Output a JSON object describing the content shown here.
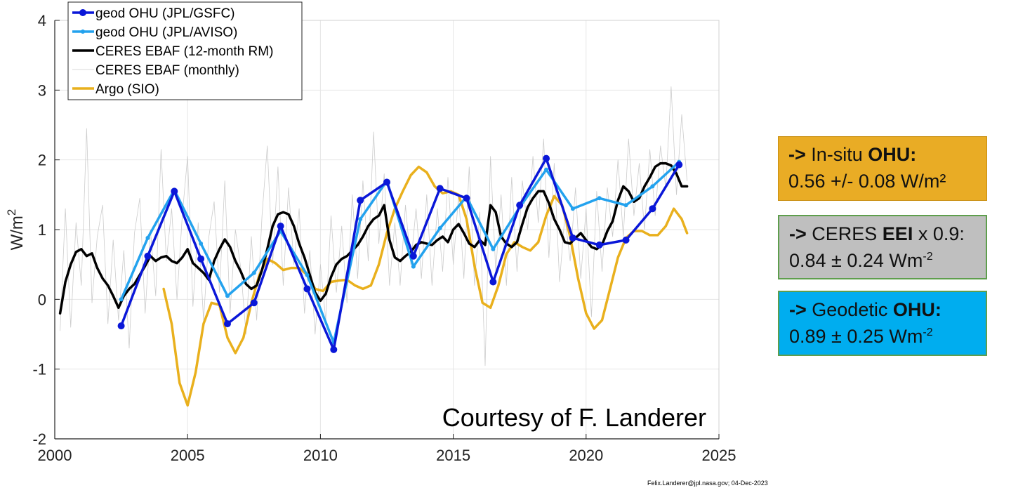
{
  "chart_data": {
    "type": "line",
    "title": "",
    "xlabel": "",
    "ylabel_base": "W/m",
    "ylabel_sup": "2",
    "xlim": [
      2000,
      2025
    ],
    "ylim": [
      -2,
      4
    ],
    "xticks": [
      2000,
      2005,
      2010,
      2015,
      2020,
      2025
    ],
    "yticks": [
      -2,
      -1,
      0,
      1,
      2,
      3,
      4
    ],
    "xtick_labels": [
      "2000",
      "2005",
      "2010",
      "2015",
      "2020",
      "2025"
    ],
    "ytick_labels": [
      "-2",
      "-1",
      "0",
      "1",
      "2",
      "3",
      "4"
    ],
    "grid": true,
    "legend_position": "top-left",
    "series": [
      {
        "name": "geod OHU (JPL/GSFC)",
        "color": "#0a17d8",
        "style": "line-dots",
        "x": [
          2002.5,
          2003.5,
          2004.5,
          2005.5,
          2006.5,
          2007.5,
          2008.5,
          2009.5,
          2010.5,
          2011.5,
          2012.5,
          2013.5,
          2014.5,
          2015.5,
          2016.5,
          2017.5,
          2018.5,
          2019.5,
          2020.5,
          2021.5,
          2022.5,
          2023.5
        ],
        "y": [
          -0.38,
          0.62,
          1.55,
          0.58,
          -0.35,
          -0.05,
          1.05,
          0.15,
          -0.72,
          1.42,
          1.68,
          0.62,
          1.59,
          1.45,
          0.25,
          1.35,
          2.02,
          0.88,
          0.78,
          0.85,
          1.3,
          1.93
        ]
      },
      {
        "name": "geod OHU (JPL/AVISO)",
        "color": "#23a2ee",
        "style": "line-small-dots",
        "x": [
          2002.5,
          2003.5,
          2004.5,
          2005.5,
          2006.5,
          2007.5,
          2008.5,
          2009.5,
          2010.5,
          2011.5,
          2012.5,
          2013.5,
          2014.5,
          2015.5,
          2016.5,
          2017.5,
          2018.5,
          2019.5,
          2020.5,
          2021.5,
          2022.5,
          2023.5
        ],
        "y": [
          0.0,
          0.88,
          1.57,
          0.8,
          0.05,
          0.38,
          0.98,
          0.35,
          -0.62,
          1.15,
          1.7,
          0.47,
          1.02,
          1.47,
          0.72,
          1.32,
          1.86,
          1.3,
          1.45,
          1.35,
          1.62,
          1.97
        ]
      },
      {
        "name": "CERES EBAF (12-month RM)",
        "color": "#000000",
        "style": "thick-line",
        "x": [
          2000.2,
          2000.4,
          2000.6,
          2000.8,
          2001.0,
          2001.2,
          2001.4,
          2001.6,
          2001.8,
          2002.0,
          2002.2,
          2002.4,
          2002.6,
          2002.8,
          2003.0,
          2003.2,
          2003.4,
          2003.6,
          2003.8,
          2004.0,
          2004.2,
          2004.4,
          2004.6,
          2004.8,
          2005.0,
          2005.2,
          2005.4,
          2005.6,
          2005.8,
          2006.0,
          2006.2,
          2006.4,
          2006.6,
          2006.8,
          2007.0,
          2007.2,
          2007.4,
          2007.6,
          2007.8,
          2008.0,
          2008.2,
          2008.4,
          2008.6,
          2008.8,
          2009.0,
          2009.2,
          2009.4,
          2009.6,
          2009.8,
          2010.0,
          2010.2,
          2010.4,
          2010.6,
          2010.8,
          2011.0,
          2011.2,
          2011.4,
          2011.6,
          2011.8,
          2012.0,
          2012.2,
          2012.4,
          2012.6,
          2012.8,
          2013.0,
          2013.2,
          2013.4,
          2013.6,
          2013.8,
          2014.0,
          2014.2,
          2014.4,
          2014.6,
          2014.8,
          2015.0,
          2015.2,
          2015.4,
          2015.6,
          2015.8,
          2016.0,
          2016.2,
          2016.4,
          2016.6,
          2016.8,
          2017.0,
          2017.2,
          2017.4,
          2017.6,
          2017.8,
          2018.0,
          2018.2,
          2018.4,
          2018.6,
          2018.8,
          2019.0,
          2019.2,
          2019.4,
          2019.6,
          2019.8,
          2020.0,
          2020.2,
          2020.4,
          2020.6,
          2020.8,
          2021.0,
          2021.2,
          2021.4,
          2021.6,
          2021.8,
          2022.0,
          2022.2,
          2022.4,
          2022.6,
          2022.8,
          2023.0,
          2023.2,
          2023.4,
          2023.6,
          2023.8
        ],
        "y": [
          -0.2,
          0.25,
          0.5,
          0.68,
          0.72,
          0.62,
          0.66,
          0.45,
          0.3,
          0.2,
          0.05,
          -0.12,
          0.05,
          0.15,
          0.22,
          0.35,
          0.48,
          0.62,
          0.55,
          0.6,
          0.62,
          0.55,
          0.52,
          0.6,
          0.72,
          0.52,
          0.45,
          0.38,
          0.28,
          0.55,
          0.72,
          0.86,
          0.75,
          0.55,
          0.4,
          0.22,
          0.15,
          0.2,
          0.42,
          0.72,
          1.05,
          1.22,
          1.25,
          1.22,
          1.05,
          0.8,
          0.6,
          0.35,
          0.1,
          -0.02,
          0.08,
          0.32,
          0.5,
          0.58,
          0.62,
          0.7,
          0.78,
          0.9,
          1.05,
          1.15,
          1.2,
          1.35,
          0.85,
          0.6,
          0.55,
          0.62,
          0.68,
          0.78,
          0.82,
          0.8,
          0.78,
          0.85,
          0.9,
          0.82,
          1.0,
          1.08,
          0.95,
          0.8,
          0.75,
          0.85,
          0.78,
          1.35,
          1.25,
          0.9,
          0.8,
          0.75,
          0.82,
          1.08,
          1.32,
          1.45,
          1.55,
          1.55,
          1.38,
          1.15,
          1.0,
          0.82,
          0.8,
          0.88,
          0.95,
          0.85,
          0.75,
          0.72,
          0.78,
          0.98,
          1.12,
          1.42,
          1.62,
          1.55,
          1.4,
          1.45,
          1.62,
          1.75,
          1.9,
          1.95,
          1.95,
          1.92,
          1.8,
          1.62,
          1.62
        ]
      },
      {
        "name": "CERES EBAF (monthly)",
        "color": "#cccccc",
        "style": "thin-line",
        "x": [
          2000.2,
          2000.4,
          2000.6,
          2000.8,
          2001.0,
          2001.2,
          2001.4,
          2001.6,
          2001.8,
          2002.0,
          2002.2,
          2002.4,
          2002.6,
          2002.8,
          2003.0,
          2003.2,
          2003.4,
          2003.6,
          2003.8,
          2004.0,
          2004.2,
          2004.4,
          2004.6,
          2004.8,
          2005.0,
          2005.2,
          2005.4,
          2005.6,
          2005.8,
          2006.0,
          2006.2,
          2006.4,
          2006.6,
          2006.8,
          2007.0,
          2007.2,
          2007.4,
          2007.6,
          2007.8,
          2008.0,
          2008.2,
          2008.4,
          2008.6,
          2008.8,
          2009.0,
          2009.2,
          2009.4,
          2009.6,
          2009.8,
          2010.0,
          2010.2,
          2010.4,
          2010.6,
          2010.8,
          2011.0,
          2011.2,
          2011.4,
          2011.6,
          2011.8,
          2012.0,
          2012.2,
          2012.4,
          2012.6,
          2012.8,
          2013.0,
          2013.2,
          2013.4,
          2013.6,
          2013.8,
          2014.0,
          2014.2,
          2014.4,
          2014.6,
          2014.8,
          2015.0,
          2015.2,
          2015.4,
          2015.6,
          2015.8,
          2016.0,
          2016.2,
          2016.4,
          2016.6,
          2016.8,
          2017.0,
          2017.2,
          2017.4,
          2017.6,
          2017.8,
          2018.0,
          2018.2,
          2018.4,
          2018.6,
          2018.8,
          2019.0,
          2019.2,
          2019.4,
          2019.6,
          2019.8,
          2020.0,
          2020.2,
          2020.4,
          2020.6,
          2020.8,
          2021.0,
          2021.2,
          2021.4,
          2021.6,
          2021.8,
          2022.0,
          2022.2,
          2022.4,
          2022.6,
          2022.8,
          2023.0,
          2023.2,
          2023.4,
          2023.6,
          2023.8
        ],
        "y": [
          -0.45,
          1.3,
          -0.4,
          1.1,
          0.2,
          2.45,
          -0.05,
          0.9,
          1.35,
          -0.35,
          0.85,
          -0.3,
          0.7,
          -0.7,
          0.95,
          1.45,
          -0.2,
          1.0,
          0.05,
          2.15,
          0.55,
          1.3,
          0.0,
          1.2,
          2.05,
          -0.1,
          1.1,
          -0.3,
          0.9,
          1.4,
          0.1,
          1.7,
          -0.2,
          1.0,
          0.45,
          -0.5,
          0.9,
          -0.3,
          1.2,
          2.2,
          0.5,
          1.9,
          0.2,
          1.6,
          0.5,
          1.3,
          -0.2,
          0.7,
          -0.5,
          0.5,
          -0.3,
          1.2,
          0.1,
          1.05,
          -0.05,
          1.5,
          0.3,
          1.7,
          0.55,
          2.4,
          0.8,
          1.8,
          0.2,
          1.1,
          0.2,
          1.35,
          0.5,
          1.3,
          0.3,
          1.5,
          0.2,
          1.3,
          0.4,
          1.75,
          0.5,
          1.5,
          0.3,
          1.9,
          0.2,
          1.25,
          -0.95,
          2.05,
          0.4,
          1.5,
          0.2,
          1.75,
          0.4,
          1.7,
          1.0,
          2.05,
          1.1,
          2.3,
          0.6,
          1.95,
          0.25,
          1.2,
          0.55,
          1.6,
          0.3,
          1.3,
          -0.25,
          1.55,
          0.4,
          1.6,
          0.9,
          2.0,
          0.9,
          2.3,
          1.2,
          1.95,
          1.0,
          2.15,
          1.2,
          2.2,
          1.6,
          3.05,
          1.5,
          2.65,
          1.7
        ]
      },
      {
        "name": "Argo (SIO)",
        "color": "#e9b01d",
        "style": "thick-line",
        "x": [
          2004.1,
          2004.4,
          2004.7,
          2005.0,
          2005.3,
          2005.6,
          2005.9,
          2006.2,
          2006.5,
          2006.8,
          2007.1,
          2007.4,
          2007.7,
          2008.0,
          2008.3,
          2008.6,
          2008.9,
          2009.2,
          2009.5,
          2009.8,
          2010.1,
          2010.4,
          2010.7,
          2011.0,
          2011.3,
          2011.6,
          2011.9,
          2012.2,
          2012.5,
          2012.8,
          2013.1,
          2013.4,
          2013.7,
          2014.0,
          2014.3,
          2014.6,
          2014.9,
          2015.2,
          2015.5,
          2015.8,
          2016.1,
          2016.4,
          2016.7,
          2017.0,
          2017.3,
          2017.6,
          2017.9,
          2018.2,
          2018.5,
          2018.8,
          2019.1,
          2019.4,
          2019.7,
          2020.0,
          2020.3,
          2020.6,
          2020.9,
          2021.2,
          2021.5,
          2021.8,
          2022.1,
          2022.4,
          2022.7,
          2023.0,
          2023.3,
          2023.6,
          2023.8
        ],
        "y": [
          0.15,
          -0.35,
          -1.2,
          -1.52,
          -1.05,
          -0.35,
          -0.05,
          -0.08,
          -0.55,
          -0.77,
          -0.55,
          -0.05,
          0.35,
          0.58,
          0.52,
          0.42,
          0.45,
          0.45,
          0.35,
          0.15,
          0.12,
          0.25,
          0.27,
          0.28,
          0.2,
          0.15,
          0.2,
          0.5,
          0.95,
          1.3,
          1.55,
          1.78,
          1.9,
          1.82,
          1.62,
          1.52,
          1.55,
          1.5,
          1.15,
          0.48,
          -0.05,
          -0.12,
          0.2,
          0.65,
          0.82,
          0.75,
          0.7,
          0.82,
          1.2,
          1.48,
          1.35,
          0.9,
          0.3,
          -0.2,
          -0.42,
          -0.3,
          0.15,
          0.6,
          0.88,
          0.98,
          0.98,
          0.92,
          0.92,
          1.05,
          1.3,
          1.15,
          0.95
        ]
      }
    ],
    "annotation": "Courtesy of F. Landerer",
    "footer": "Felix.Landerer@jpl.nasa.gov; 04-Dec-2023"
  },
  "side_boxes": [
    {
      "color": "#e9ac25",
      "line1_prefix": "->",
      "line1_text": " In-situ ",
      "line1_bold": "OHU:",
      "line1_tail": "",
      "line2": "0.56 +/- 0.08 W/m²",
      "line2_sup": ""
    },
    {
      "color": "#bfbfbf",
      "line1_prefix": "->",
      "line1_text": " CERES ",
      "line1_bold": "EEI",
      "line1_tail": " x 0.9:",
      "line2": "0.84 ± 0.24 Wm",
      "line2_sup": "-2"
    },
    {
      "color": "#00adef",
      "line1_prefix": "->",
      "line1_text": " Geodetic ",
      "line1_bold": "OHU:",
      "line1_tail": "",
      "line2": "0.89 ± 0.25 Wm",
      "line2_sup": "-2"
    }
  ]
}
